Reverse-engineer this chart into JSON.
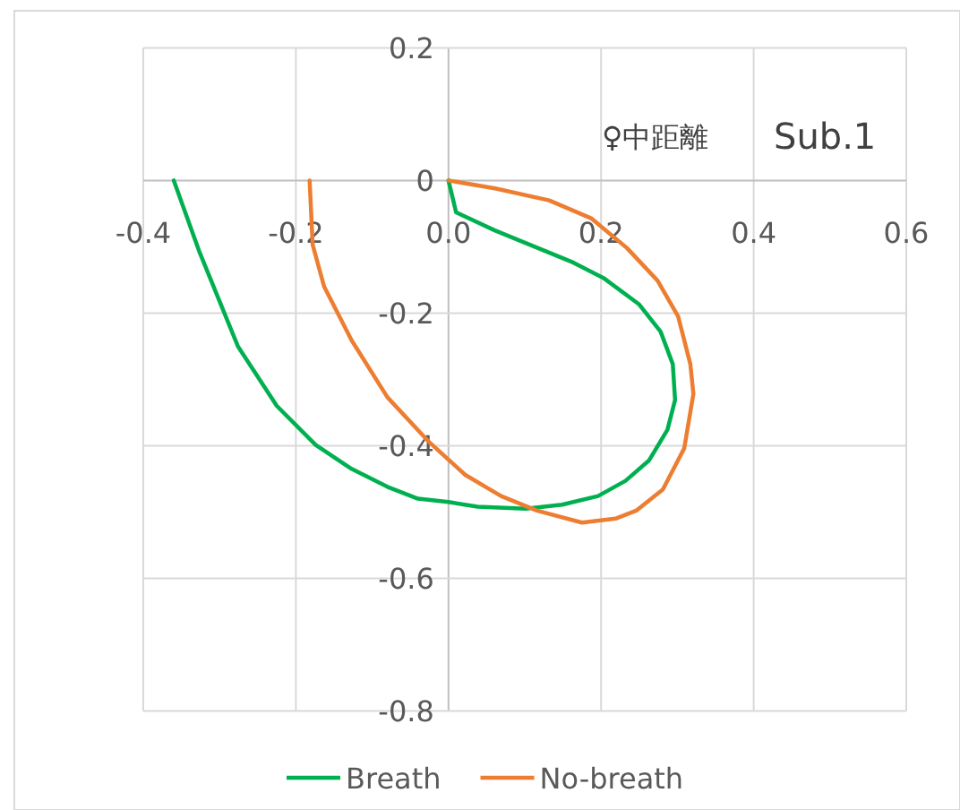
{
  "chart_data": {
    "type": "line",
    "xlim": [
      -0.4,
      0.6
    ],
    "ylim": [
      -0.8,
      0.2
    ],
    "xticks": [
      -0.4,
      -0.2,
      {
        "value": 0,
        "label": "0.0"
      },
      0.2,
      0.4,
      0.6
    ],
    "yticks": [
      -0.8,
      -0.6,
      -0.4,
      -0.2,
      0,
      0.2
    ],
    "grid": true,
    "legend": "bottom",
    "marker": "none",
    "line_style": "solid",
    "annotations": [
      "♀中距離",
      "Sub.1"
    ],
    "series": [
      {
        "name": "Breath",
        "color": "#00b050",
        "x": [
          0,
          0.01,
          0.06,
          0.164,
          0.203,
          0.25,
          0.278,
          0.294,
          0.297,
          0.287,
          0.263,
          0.232,
          0.196,
          0.149,
          0.101,
          0.038,
          0,
          -0.04,
          -0.08,
          -0.127,
          -0.174,
          -0.225,
          -0.276,
          -0.327,
          -0.36
        ],
        "values": [
          0,
          -0.048,
          -0.075,
          -0.124,
          -0.147,
          -0.187,
          -0.228,
          -0.277,
          -0.331,
          -0.376,
          -0.422,
          -0.453,
          -0.476,
          -0.489,
          -0.495,
          -0.492,
          -0.485,
          -0.48,
          -0.462,
          -0.435,
          -0.399,
          -0.34,
          -0.25,
          -0.106,
          0
        ]
      },
      {
        "name": "No-breath",
        "color": "#ed7d31",
        "x": [
          0,
          0.061,
          0.132,
          0.187,
          0.234,
          0.274,
          0.301,
          0.317,
          0.321,
          0.309,
          0.281,
          0.246,
          0.219,
          0.175,
          0.116,
          0.069,
          0.022,
          -0.025,
          -0.08,
          -0.127,
          -0.163,
          -0.178,
          -0.182
        ],
        "values": [
          0,
          -0.012,
          -0.03,
          -0.057,
          -0.102,
          -0.151,
          -0.205,
          -0.277,
          -0.322,
          -0.404,
          -0.466,
          -0.498,
          -0.51,
          -0.516,
          -0.498,
          -0.476,
          -0.444,
          -0.395,
          -0.327,
          -0.241,
          -0.16,
          -0.097,
          0
        ]
      }
    ]
  }
}
